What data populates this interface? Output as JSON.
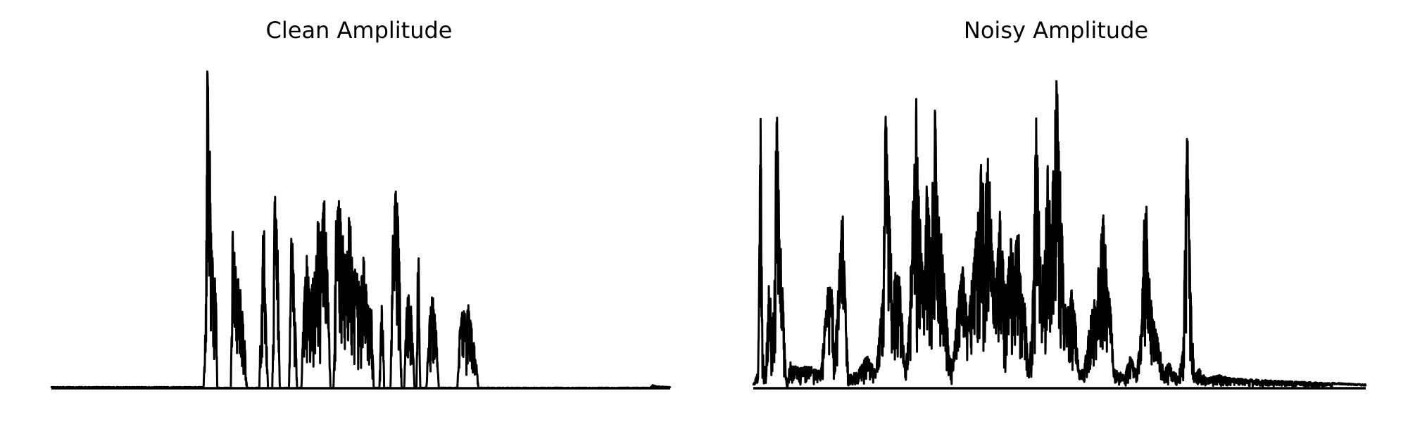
{
  "chart_data": [
    {
      "type": "line",
      "title": "Clean Amplitude",
      "xlabel": "",
      "ylabel": "",
      "axes_visible": false,
      "grid": false,
      "line_color": "#000000",
      "ylim": [
        0,
        1
      ],
      "xlim": [
        0,
        1
      ],
      "envelope": [
        [
          0.0,
          0.002
        ],
        [
          0.246,
          0.002
        ],
        [
          0.249,
          0.25
        ],
        [
          0.252,
          1.0
        ],
        [
          0.256,
          0.75
        ],
        [
          0.259,
          0.45
        ],
        [
          0.262,
          0.4
        ],
        [
          0.266,
          0.3
        ],
        [
          0.268,
          0.0
        ],
        [
          0.29,
          0.0
        ],
        [
          0.293,
          0.52
        ],
        [
          0.297,
          0.38
        ],
        [
          0.301,
          0.35
        ],
        [
          0.306,
          0.3
        ],
        [
          0.311,
          0.2
        ],
        [
          0.316,
          0.0
        ],
        [
          0.336,
          0.0
        ],
        [
          0.339,
          0.3
        ],
        [
          0.343,
          0.57
        ],
        [
          0.347,
          0.2
        ],
        [
          0.35,
          0.0
        ],
        [
          0.357,
          0.0
        ],
        [
          0.361,
          0.62
        ],
        [
          0.366,
          0.42
        ],
        [
          0.369,
          0.0
        ],
        [
          0.384,
          0.0
        ],
        [
          0.388,
          0.5
        ],
        [
          0.393,
          0.35
        ],
        [
          0.397,
          0.0
        ],
        [
          0.404,
          0.0
        ],
        [
          0.408,
          0.33
        ],
        [
          0.413,
          0.42
        ],
        [
          0.418,
          0.28
        ],
        [
          0.424,
          0.36
        ],
        [
          0.43,
          0.55
        ],
        [
          0.435,
          0.45
        ],
        [
          0.441,
          0.6
        ],
        [
          0.446,
          0.4
        ],
        [
          0.451,
          0.0
        ],
        [
          0.456,
          0.0
        ],
        [
          0.46,
          0.52
        ],
        [
          0.466,
          0.6
        ],
        [
          0.472,
          0.45
        ],
        [
          0.477,
          0.38
        ],
        [
          0.482,
          0.58
        ],
        [
          0.488,
          0.35
        ],
        [
          0.493,
          0.38
        ],
        [
          0.499,
          0.3
        ],
        [
          0.505,
          0.42
        ],
        [
          0.511,
          0.25
        ],
        [
          0.517,
          0.28
        ],
        [
          0.521,
          0.0
        ],
        [
          0.53,
          0.0
        ],
        [
          0.534,
          0.32
        ],
        [
          0.538,
          0.0
        ],
        [
          0.548,
          0.0
        ],
        [
          0.552,
          0.48
        ],
        [
          0.557,
          0.65
        ],
        [
          0.562,
          0.45
        ],
        [
          0.566,
          0.0
        ],
        [
          0.57,
          0.0
        ],
        [
          0.574,
          0.26
        ],
        [
          0.579,
          0.32
        ],
        [
          0.583,
          0.2
        ],
        [
          0.587,
          0.0
        ],
        [
          0.59,
          0.0
        ],
        [
          0.593,
          0.56
        ],
        [
          0.596,
          0.0
        ],
        [
          0.606,
          0.0
        ],
        [
          0.61,
          0.2
        ],
        [
          0.616,
          0.3
        ],
        [
          0.621,
          0.22
        ],
        [
          0.626,
          0.0
        ],
        [
          0.656,
          0.0
        ],
        [
          0.66,
          0.18
        ],
        [
          0.665,
          0.25
        ],
        [
          0.67,
          0.22
        ],
        [
          0.676,
          0.28
        ],
        [
          0.681,
          0.16
        ],
        [
          0.686,
          0.1
        ],
        [
          0.69,
          0.0
        ],
        [
          0.968,
          0.0
        ],
        [
          0.972,
          0.008
        ],
        [
          0.978,
          0.004
        ],
        [
          1.0,
          0.002
        ]
      ]
    },
    {
      "type": "line",
      "title": "Noisy Amplitude",
      "xlabel": "",
      "ylabel": "",
      "axes_visible": false,
      "grid": false,
      "line_color": "#000000",
      "ylim": [
        0,
        1
      ],
      "xlim": [
        0,
        1
      ],
      "envelope": [
        [
          0.0,
          0.01
        ],
        [
          0.008,
          0.05
        ],
        [
          0.012,
          0.86
        ],
        [
          0.015,
          0.12
        ],
        [
          0.02,
          0.05
        ],
        [
          0.026,
          0.35
        ],
        [
          0.03,
          0.22
        ],
        [
          0.034,
          0.25
        ],
        [
          0.038,
          0.9
        ],
        [
          0.043,
          0.6
        ],
        [
          0.048,
          0.3
        ],
        [
          0.052,
          0.1
        ],
        [
          0.055,
          0.0
        ],
        [
          0.06,
          0.08
        ],
        [
          0.075,
          0.06
        ],
        [
          0.09,
          0.07
        ],
        [
          0.11,
          0.05
        ],
        [
          0.128,
          0.45
        ],
        [
          0.132,
          0.08
        ],
        [
          0.14,
          0.35
        ],
        [
          0.146,
          0.58
        ],
        [
          0.15,
          0.3
        ],
        [
          0.155,
          0.04
        ],
        [
          0.17,
          0.05
        ],
        [
          0.186,
          0.1
        ],
        [
          0.2,
          0.05
        ],
        [
          0.212,
          0.3
        ],
        [
          0.216,
          0.88
        ],
        [
          0.222,
          0.55
        ],
        [
          0.228,
          0.3
        ],
        [
          0.236,
          0.42
        ],
        [
          0.242,
          0.25
        ],
        [
          0.248,
          0.05
        ],
        [
          0.254,
          0.2
        ],
        [
          0.258,
          0.45
        ],
        [
          0.266,
          0.88
        ],
        [
          0.272,
          0.55
        ],
        [
          0.278,
          0.35
        ],
        [
          0.284,
          0.7
        ],
        [
          0.29,
          0.45
        ],
        [
          0.296,
          0.89
        ],
        [
          0.302,
          0.62
        ],
        [
          0.308,
          0.45
        ],
        [
          0.314,
          0.28
        ],
        [
          0.32,
          0.1
        ],
        [
          0.326,
          0.08
        ],
        [
          0.335,
          0.28
        ],
        [
          0.342,
          0.38
        ],
        [
          0.35,
          0.22
        ],
        [
          0.358,
          0.35
        ],
        [
          0.365,
          0.5
        ],
        [
          0.372,
          0.68
        ],
        [
          0.378,
          0.58
        ],
        [
          0.384,
          0.72
        ],
        [
          0.39,
          0.45
        ],
        [
          0.396,
          0.3
        ],
        [
          0.402,
          0.55
        ],
        [
          0.408,
          0.4
        ],
        [
          0.414,
          0.3
        ],
        [
          0.42,
          0.48
        ],
        [
          0.426,
          0.38
        ],
        [
          0.432,
          0.52
        ],
        [
          0.438,
          0.3
        ],
        [
          0.444,
          0.25
        ],
        [
          0.45,
          0.05
        ],
        [
          0.456,
          0.25
        ],
        [
          0.462,
          0.85
        ],
        [
          0.468,
          0.45
        ],
        [
          0.474,
          0.35
        ],
        [
          0.48,
          0.7
        ],
        [
          0.486,
          0.5
        ],
        [
          0.492,
          0.78
        ],
        [
          0.496,
          1.0
        ],
        [
          0.502,
          0.6
        ],
        [
          0.508,
          0.28
        ],
        [
          0.514,
          0.25
        ],
        [
          0.52,
          0.3
        ],
        [
          0.526,
          0.22
        ],
        [
          0.532,
          0.05
        ],
        [
          0.54,
          0.06
        ],
        [
          0.552,
          0.24
        ],
        [
          0.56,
          0.3
        ],
        [
          0.566,
          0.42
        ],
        [
          0.572,
          0.55
        ],
        [
          0.578,
          0.32
        ],
        [
          0.584,
          0.25
        ],
        [
          0.588,
          0.06
        ],
        [
          0.598,
          0.05
        ],
        [
          0.606,
          0.04
        ],
        [
          0.616,
          0.1
        ],
        [
          0.626,
          0.05
        ],
        [
          0.634,
          0.2
        ],
        [
          0.64,
          0.65
        ],
        [
          0.646,
          0.35
        ],
        [
          0.652,
          0.22
        ],
        [
          0.658,
          0.18
        ],
        [
          0.664,
          0.12
        ],
        [
          0.67,
          0.05
        ],
        [
          0.678,
          0.08
        ],
        [
          0.686,
          0.05
        ],
        [
          0.694,
          0.04
        ],
        [
          0.702,
          0.12
        ],
        [
          0.708,
          0.86
        ],
        [
          0.714,
          0.3
        ],
        [
          0.72,
          0.04
        ],
        [
          0.728,
          0.06
        ],
        [
          0.74,
          0.03
        ],
        [
          0.76,
          0.04
        ],
        [
          0.78,
          0.03
        ],
        [
          1.0,
          0.01
        ]
      ]
    }
  ]
}
